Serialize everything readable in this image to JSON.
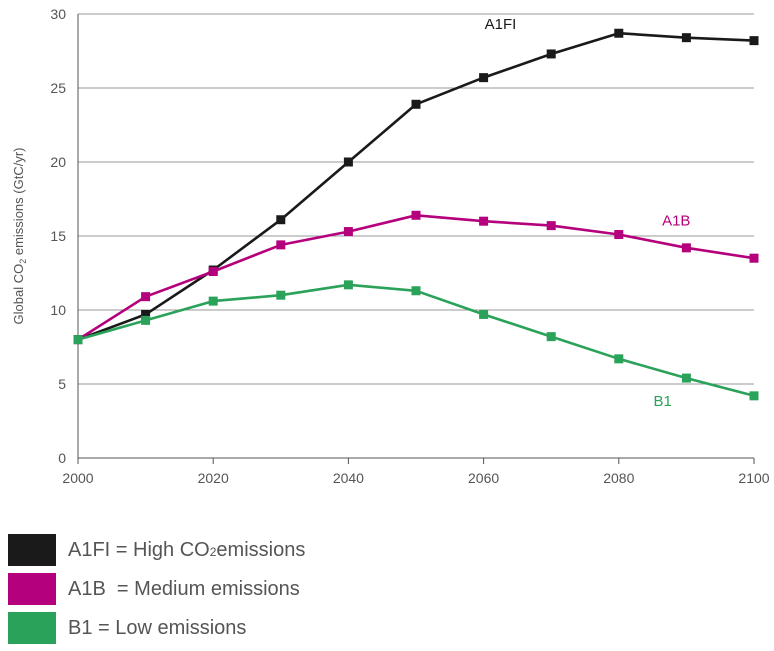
{
  "chart_data": {
    "type": "line",
    "ylabel": "Global CO2 emissions (GtC/yr)",
    "ylabel_parts": [
      "Global CO",
      "2",
      " emissions (GtC/yr)"
    ],
    "xlim": [
      2000,
      2100
    ],
    "ylim": [
      0,
      30
    ],
    "x_ticks": [
      2000,
      2020,
      2040,
      2060,
      2080,
      2100
    ],
    "y_ticks": [
      0,
      5,
      10,
      15,
      20,
      25,
      30
    ],
    "grid": "horizontal",
    "x": [
      2000,
      2010,
      2020,
      2030,
      2040,
      2050,
      2060,
      2070,
      2080,
      2090,
      2100
    ],
    "series": [
      {
        "name": "A1FI",
        "color": "#1a1a1a",
        "values": [
          8.0,
          9.7,
          12.7,
          16.1,
          20.0,
          23.9,
          25.7,
          27.3,
          28.7,
          28.4,
          28.2
        ]
      },
      {
        "name": "A1B",
        "color": "#b5007d",
        "values": [
          8.0,
          10.9,
          12.6,
          14.4,
          15.3,
          16.4,
          16.0,
          15.7,
          15.1,
          14.2,
          13.5
        ]
      },
      {
        "name": "B1",
        "color": "#2aa25a",
        "values": [
          8.0,
          9.3,
          10.6,
          11.0,
          11.7,
          11.3,
          9.7,
          8.2,
          6.7,
          5.4,
          4.2
        ]
      }
    ]
  },
  "legend": [
    {
      "color": "#1a1a1a",
      "parts": [
        "A1FI = High CO",
        "2",
        " emissions"
      ]
    },
    {
      "color": "#b5007d",
      "parts": [
        "A1B  = Medium emissions"
      ]
    },
    {
      "color": "#2aa25a",
      "parts": [
        "B1 = Low emissions"
      ]
    }
  ]
}
